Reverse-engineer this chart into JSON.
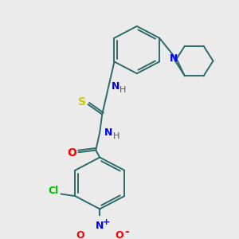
{
  "background_color": "#ebebeb",
  "bond_color": "#2d6b6b",
  "atom_colors": {
    "N": "#0000ff",
    "O": "#ff0000",
    "Cl": "#00bb00",
    "S": "#cccc00",
    "H": "#555555",
    "plus": "#0000ff",
    "minus": "#ff0000"
  },
  "figsize": [
    3.0,
    3.0
  ],
  "dpi": 100
}
